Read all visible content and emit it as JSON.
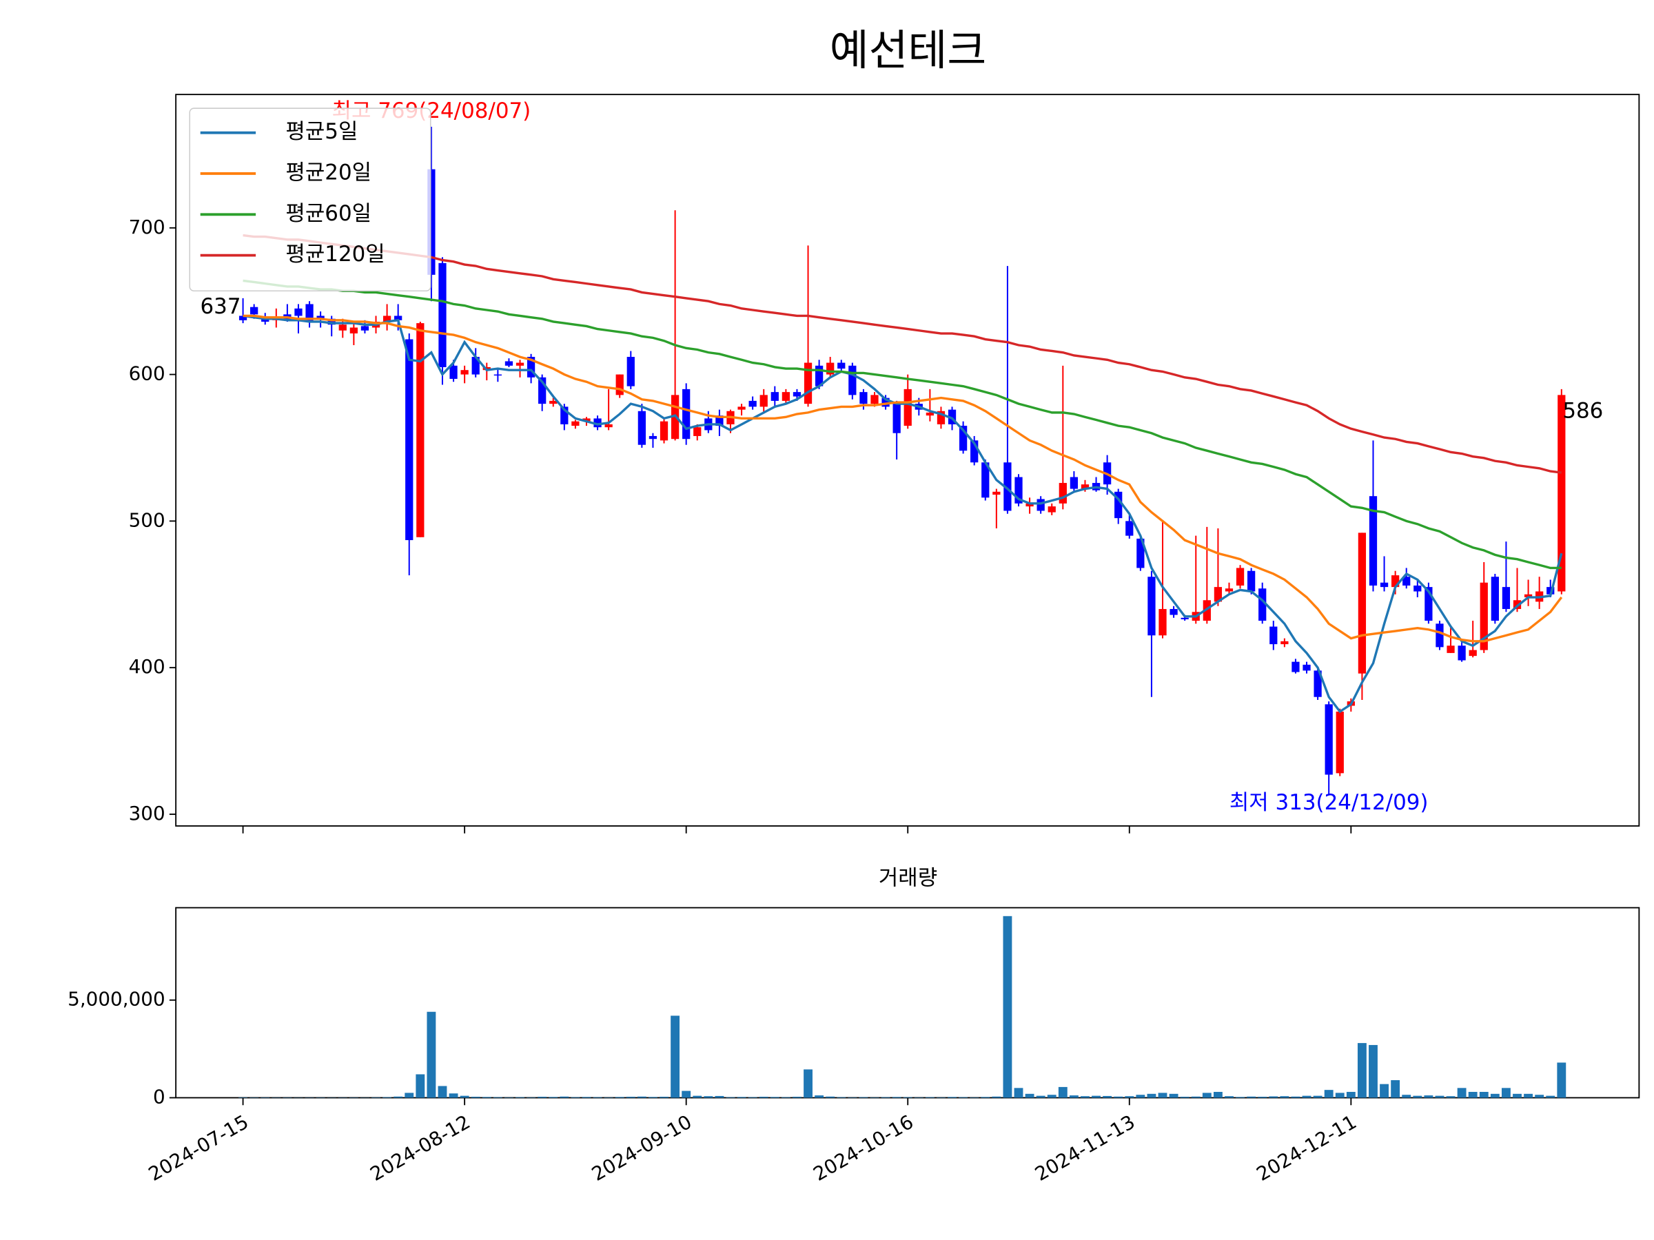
{
  "chart_data": [
    {
      "type": "candlestick",
      "title": "예선테크",
      "open": [
        640,
        646,
        638,
        637,
        641,
        645,
        648,
        640,
        638,
        630,
        628,
        633,
        632,
        636,
        640,
        624,
        489,
        740,
        676,
        606,
        600,
        612,
        603,
        600,
        609,
        606,
        612,
        598,
        580,
        578,
        565,
        568,
        570,
        564,
        586,
        612,
        575,
        558,
        555,
        556,
        590,
        558,
        570,
        572,
        566,
        576,
        582,
        578,
        588,
        582,
        588,
        580,
        606,
        600,
        608,
        606,
        588,
        580,
        584,
        580,
        565,
        580,
        572,
        566,
        576,
        565,
        555,
        540,
        518,
        540,
        530,
        510,
        515,
        506,
        512,
        530,
        522,
        526,
        540,
        520,
        500,
        488,
        462,
        422,
        440,
        434,
        432,
        432,
        445,
        452,
        456,
        466,
        454,
        428,
        416,
        404,
        402,
        398,
        375,
        328,
        374,
        396,
        517,
        458,
        455,
        462,
        456,
        455,
        430,
        410,
        415,
        408,
        412,
        462,
        455,
        440,
        448,
        445,
        455,
        452
      ],
      "high": [
        652,
        648,
        642,
        645,
        648,
        648,
        650,
        643,
        640,
        638,
        636,
        637,
        640,
        648,
        648,
        628,
        636,
        769,
        680,
        610,
        606,
        618,
        608,
        604,
        611,
        610,
        614,
        600,
        584,
        580,
        569,
        571,
        572,
        590,
        600,
        616,
        580,
        560,
        570,
        712,
        594,
        566,
        575,
        576,
        576,
        580,
        585,
        590,
        592,
        590,
        590,
        688,
        610,
        612,
        610,
        608,
        590,
        588,
        586,
        582,
        600,
        584,
        590,
        578,
        578,
        568,
        558,
        542,
        522,
        674,
        532,
        516,
        517,
        512,
        606,
        534,
        528,
        530,
        545,
        522,
        504,
        490,
        466,
        500,
        442,
        436,
        490,
        496,
        495,
        458,
        470,
        468,
        458,
        432,
        420,
        406,
        404,
        400,
        377,
        372,
        379,
        492,
        555,
        476,
        466,
        468,
        460,
        458,
        432,
        428,
        418,
        432,
        472,
        464,
        486,
        468,
        460,
        462,
        460,
        590
      ],
      "low": [
        635,
        638,
        634,
        632,
        636,
        628,
        632,
        632,
        626,
        625,
        620,
        628,
        628,
        630,
        630,
        463,
        489,
        650,
        593,
        595,
        594,
        598,
        596,
        595,
        605,
        598,
        594,
        575,
        578,
        562,
        563,
        565,
        562,
        562,
        584,
        590,
        550,
        550,
        553,
        555,
        552,
        555,
        560,
        558,
        560,
        572,
        576,
        574,
        578,
        580,
        582,
        578,
        590,
        598,
        602,
        583,
        576,
        578,
        576,
        542,
        563,
        572,
        568,
        563,
        562,
        546,
        538,
        514,
        495,
        505,
        510,
        505,
        505,
        504,
        508,
        520,
        520,
        520,
        518,
        498,
        488,
        466,
        380,
        420,
        434,
        432,
        430,
        430,
        442,
        450,
        454,
        450,
        430,
        412,
        414,
        396,
        396,
        378,
        313,
        326,
        370,
        378,
        452,
        452,
        450,
        454,
        448,
        430,
        412,
        410,
        404,
        407,
        410,
        430,
        438,
        438,
        442,
        440,
        448,
        450
      ],
      "close": [
        637,
        641,
        636,
        639,
        637,
        640,
        636,
        638,
        634,
        634,
        632,
        630,
        636,
        640,
        637,
        487,
        635,
        668,
        605,
        597,
        603,
        600,
        605,
        600,
        606,
        608,
        598,
        580,
        582,
        566,
        568,
        570,
        564,
        566,
        600,
        592,
        552,
        556,
        568,
        586,
        556,
        564,
        562,
        565,
        575,
        578,
        578,
        586,
        582,
        588,
        585,
        608,
        592,
        608,
        604,
        586,
        580,
        586,
        578,
        560,
        590,
        576,
        574,
        575,
        566,
        548,
        540,
        516,
        520,
        507,
        512,
        512,
        507,
        510,
        526,
        522,
        525,
        521,
        525,
        502,
        490,
        468,
        422,
        440,
        436,
        433,
        438,
        446,
        455,
        454,
        468,
        452,
        432,
        416,
        418,
        397,
        398,
        380,
        327,
        370,
        377,
        492,
        456,
        455,
        463,
        456,
        452,
        432,
        414,
        415,
        405,
        412,
        458,
        432,
        440,
        446,
        450,
        452,
        450,
        586
      ],
      "up_color": "#ff0000",
      "down_color": "#0000ff",
      "series": [
        {
          "name": "평균5일",
          "color": "#1f77b4",
          "values": [
            640,
            639,
            638,
            638,
            637,
            637,
            636,
            636,
            635,
            635,
            635,
            634,
            634,
            636,
            637,
            610,
            609,
            615,
            600,
            608,
            622,
            612,
            603,
            604,
            603,
            603,
            603,
            595,
            585,
            576,
            570,
            568,
            566,
            567,
            573,
            580,
            578,
            575,
            570,
            572,
            563,
            565,
            566,
            566,
            562,
            566,
            570,
            574,
            578,
            580,
            583,
            588,
            592,
            598,
            602,
            600,
            596,
            590,
            583,
            580,
            580,
            578,
            575,
            573,
            570,
            562,
            553,
            540,
            528,
            522,
            515,
            512,
            512,
            514,
            516,
            520,
            522,
            523,
            522,
            515,
            505,
            490,
            468,
            455,
            445,
            435,
            435,
            440,
            445,
            450,
            453,
            452,
            446,
            438,
            430,
            418,
            410,
            400,
            380,
            370,
            375,
            390,
            403,
            430,
            455,
            464,
            460,
            452,
            440,
            428,
            418,
            415,
            420,
            425,
            435,
            442,
            448,
            448,
            449,
            478
          ]
        },
        {
          "name": "평균20일",
          "color": "#ff7f0e",
          "values": [
            640,
            640,
            639,
            639,
            639,
            638,
            638,
            638,
            637,
            637,
            636,
            636,
            635,
            635,
            633,
            632,
            630,
            629,
            628,
            627,
            625,
            622,
            620,
            618,
            615,
            612,
            610,
            607,
            604,
            600,
            597,
            595,
            592,
            591,
            590,
            587,
            583,
            582,
            580,
            578,
            576,
            574,
            572,
            571,
            571,
            570,
            570,
            570,
            570,
            571,
            573,
            574,
            576,
            577,
            578,
            578,
            579,
            579,
            580,
            581,
            581,
            582,
            583,
            584,
            583,
            582,
            579,
            575,
            570,
            565,
            560,
            555,
            552,
            548,
            545,
            542,
            538,
            535,
            532,
            528,
            525,
            513,
            506,
            500,
            494,
            487,
            484,
            481,
            478,
            476,
            474,
            470,
            467,
            464,
            460,
            454,
            448,
            440,
            430,
            425,
            420,
            422,
            423,
            424,
            425,
            426,
            427,
            426,
            424,
            421,
            419,
            418,
            418,
            420,
            422,
            424,
            426,
            432,
            438,
            448
          ]
        },
        {
          "name": "평균60일",
          "color": "#2ca02c",
          "values": [
            664,
            663,
            662,
            661,
            660,
            660,
            659,
            658,
            658,
            657,
            657,
            656,
            656,
            655,
            654,
            653,
            652,
            651,
            650,
            648,
            647,
            645,
            644,
            643,
            641,
            640,
            639,
            638,
            636,
            635,
            634,
            633,
            631,
            630,
            629,
            628,
            626,
            625,
            623,
            620,
            618,
            617,
            615,
            614,
            612,
            610,
            608,
            607,
            605,
            604,
            604,
            603,
            603,
            602,
            602,
            601,
            601,
            600,
            599,
            598,
            597,
            596,
            595,
            594,
            593,
            592,
            590,
            588,
            586,
            583,
            580,
            578,
            576,
            574,
            574,
            573,
            571,
            569,
            567,
            565,
            564,
            562,
            560,
            557,
            555,
            553,
            550,
            548,
            546,
            544,
            542,
            540,
            539,
            537,
            535,
            532,
            530,
            525,
            520,
            515,
            510,
            509,
            507,
            506,
            503,
            500,
            498,
            495,
            493,
            489,
            485,
            482,
            480,
            477,
            475,
            474,
            472,
            470,
            468,
            468
          ]
        },
        {
          "name": "평균120일",
          "color": "#d62728",
          "values": [
            695,
            694,
            694,
            693,
            692,
            692,
            691,
            690,
            689,
            688,
            687,
            686,
            685,
            684,
            683,
            682,
            681,
            680,
            678,
            677,
            675,
            674,
            672,
            671,
            670,
            669,
            668,
            667,
            665,
            664,
            663,
            662,
            661,
            660,
            659,
            658,
            656,
            655,
            654,
            653,
            652,
            651,
            650,
            648,
            647,
            645,
            644,
            643,
            642,
            641,
            640,
            640,
            639,
            638,
            637,
            636,
            635,
            634,
            633,
            632,
            631,
            630,
            629,
            628,
            628,
            627,
            626,
            624,
            623,
            622,
            620,
            619,
            617,
            616,
            615,
            613,
            612,
            611,
            610,
            608,
            607,
            605,
            603,
            602,
            600,
            598,
            597,
            595,
            593,
            592,
            590,
            589,
            587,
            585,
            583,
            581,
            579,
            575,
            570,
            566,
            563,
            561,
            559,
            557,
            556,
            554,
            553,
            551,
            549,
            547,
            546,
            544,
            543,
            541,
            540,
            538,
            537,
            536,
            534,
            533
          ]
        }
      ],
      "annotations": [
        {
          "text": "최고 769(24/08/07)",
          "color": "#ff0000"
        },
        {
          "text": "최저 313(24/12/09)",
          "color": "#0000ff"
        },
        {
          "text": "637",
          "color": "#000000"
        },
        {
          "text": "586",
          "color": "#000000"
        }
      ],
      "ylim": [
        292,
        791
      ],
      "yticks": [
        300,
        400,
        500,
        600,
        700
      ],
      "legend": "upper left"
    },
    {
      "type": "bar",
      "title": "거래량",
      "categories": [
        "2024-07-15",
        null,
        null,
        null,
        null,
        null,
        null,
        null,
        null,
        null,
        null,
        null,
        null,
        null,
        null,
        null,
        null,
        null,
        null,
        null,
        "2024-08-12",
        null,
        null,
        null,
        null,
        null,
        null,
        null,
        null,
        null,
        null,
        null,
        null,
        null,
        null,
        null,
        null,
        null,
        null,
        null,
        "2024-09-10",
        null,
        null,
        null,
        null,
        null,
        null,
        null,
        null,
        null,
        null,
        null,
        null,
        null,
        null,
        null,
        null,
        null,
        null,
        null,
        "2024-10-16",
        null,
        null,
        null,
        null,
        null,
        null,
        null,
        null,
        null,
        null,
        null,
        null,
        null,
        null,
        null,
        null,
        null,
        null,
        null,
        "2024-11-13",
        null,
        null,
        null,
        null,
        null,
        null,
        null,
        null,
        null,
        null,
        null,
        null,
        null,
        null,
        null,
        null,
        null,
        null,
        null,
        "2024-12-11",
        null,
        null,
        null,
        null,
        null,
        null,
        null,
        null,
        null,
        null,
        null,
        null,
        null,
        null,
        null,
        null,
        null,
        null,
        null
      ],
      "values": [
        20000,
        15000,
        18000,
        12000,
        15000,
        10000,
        12000,
        15000,
        10000,
        12000,
        14000,
        10000,
        20000,
        30000,
        60000,
        250000,
        1200000,
        4400000,
        600000,
        220000,
        100000,
        50000,
        40000,
        30000,
        20000,
        30000,
        20000,
        50000,
        40000,
        60000,
        30000,
        40000,
        30000,
        20000,
        40000,
        50000,
        60000,
        40000,
        50000,
        4200000,
        350000,
        100000,
        80000,
        90000,
        30000,
        40000,
        30000,
        50000,
        40000,
        30000,
        50000,
        1450000,
        120000,
        60000,
        30000,
        20000,
        30000,
        20000,
        30000,
        40000,
        30000,
        20000,
        30000,
        20000,
        40000,
        30000,
        20000,
        40000,
        60000,
        9300000,
        500000,
        200000,
        100000,
        150000,
        550000,
        120000,
        80000,
        100000,
        90000,
        60000,
        80000,
        150000,
        200000,
        250000,
        200000,
        50000,
        60000,
        250000,
        300000,
        80000,
        40000,
        60000,
        50000,
        70000,
        80000,
        60000,
        100000,
        100000,
        400000,
        250000,
        300000,
        2800000,
        2700000,
        700000,
        900000,
        150000,
        100000,
        120000,
        100000,
        80000,
        500000,
        300000,
        300000,
        200000,
        500000,
        200000,
        200000,
        150000,
        100000,
        1800000
      ],
      "color": "#1f77b4",
      "ylim": [
        0,
        9730000
      ],
      "yticks": [
        0,
        {
          "value": 5000000,
          "label": "5,000,000"
        }
      ]
    }
  ]
}
